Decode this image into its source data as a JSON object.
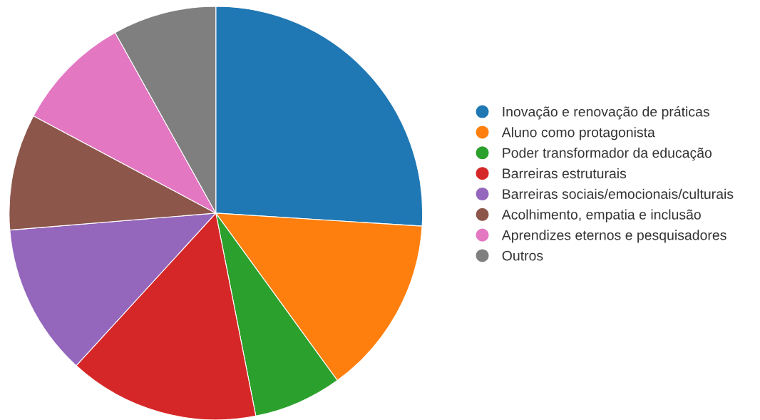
{
  "chart_data": {
    "type": "pie",
    "categories": [
      "Inovação e renovação de práticas",
      "Aluno como protagonista",
      "Poder transformador da educação",
      "Barreiras estruturais",
      "Barreiras sociais/emocionais/culturais",
      "Acolhimento, empatia e inclusão",
      "Aprendizes eternos e pesquisadores",
      "Outros"
    ],
    "values": [
      26.0,
      14.0,
      6.9,
      14.9,
      11.9,
      9.1,
      9.1,
      8.1
    ],
    "colors": [
      "#1f77b4",
      "#ff7f0e",
      "#2ca02c",
      "#d62728",
      "#9467bd",
      "#8c564b",
      "#e377c2",
      "#7f7f7f"
    ],
    "legend": "right"
  }
}
